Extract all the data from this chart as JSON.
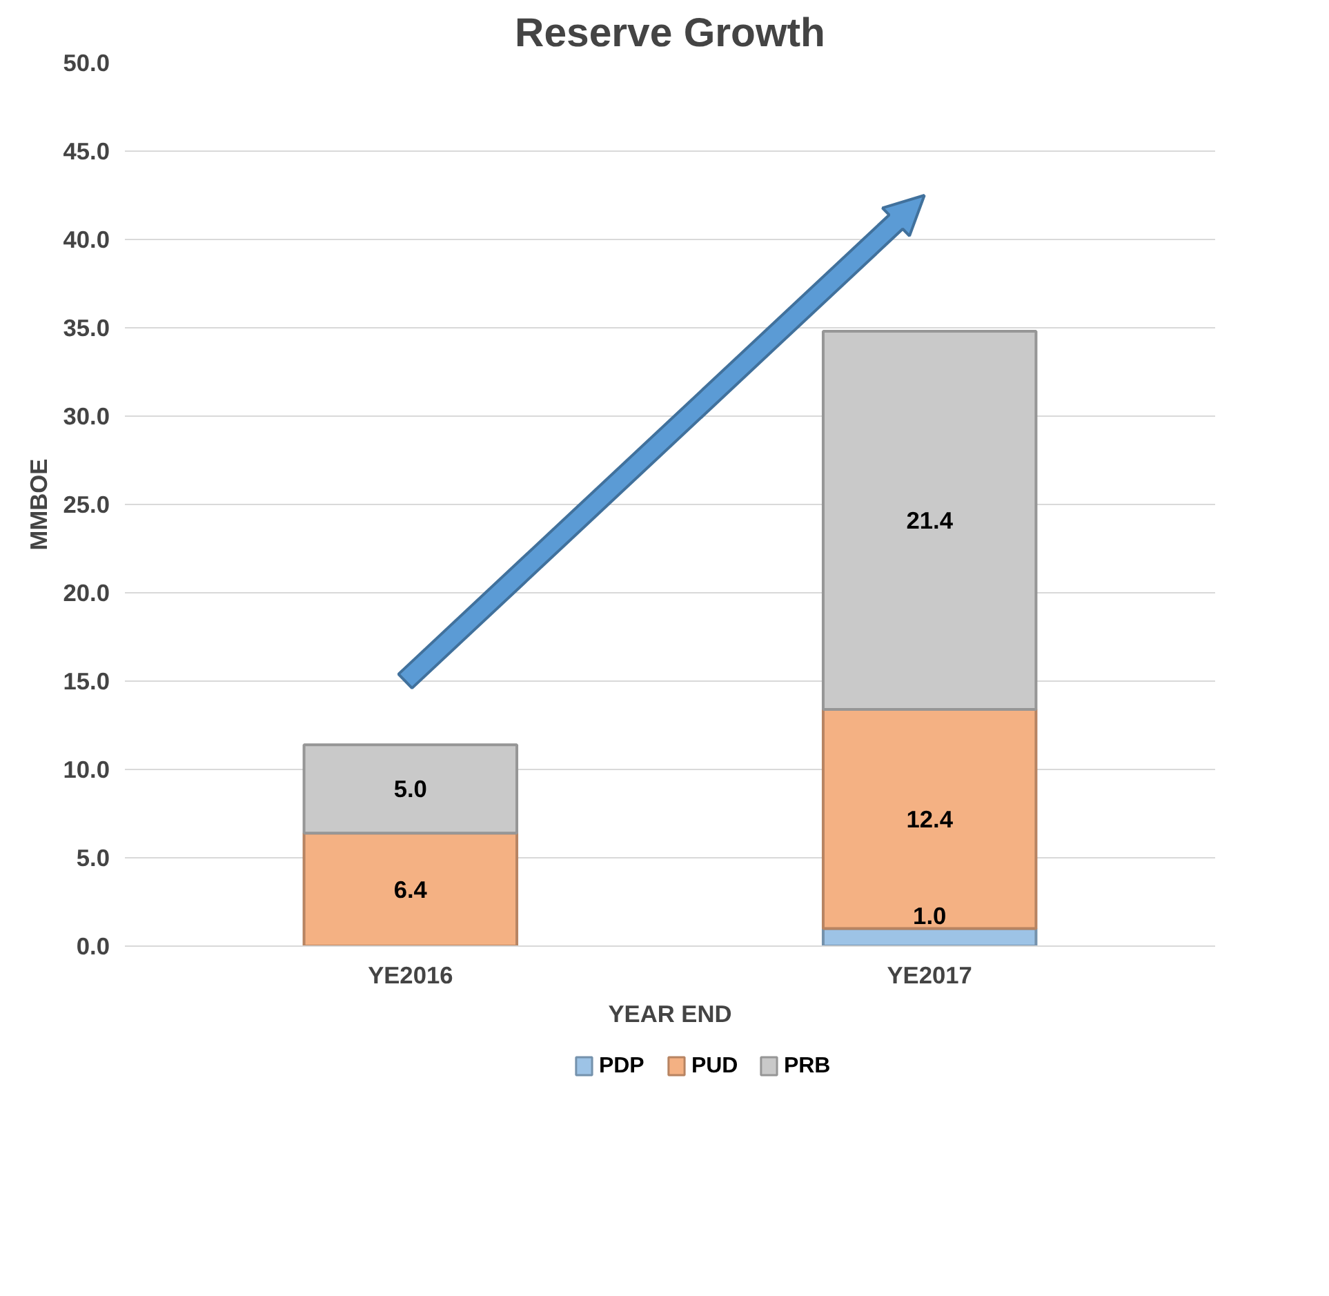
{
  "chart_data": {
    "type": "bar",
    "title": "Reserve Growth",
    "xlabel": "YEAR END",
    "ylabel": "MMBOE",
    "categories": [
      "YE2016",
      "YE2017"
    ],
    "stacked": true,
    "series": [
      {
        "name": "PDP",
        "color": "#9dc3e6",
        "values": [
          0,
          1.0
        ],
        "value_labels": [
          null,
          "1.0"
        ]
      },
      {
        "name": "PUD",
        "color": "#f4b183",
        "values": [
          6.4,
          12.4
        ],
        "value_labels": [
          "6.4",
          "12.4"
        ]
      },
      {
        "name": "PRB",
        "color": "#c9c9c9",
        "values": [
          5.0,
          21.4
        ],
        "value_labels": [
          "5.0",
          "21.4"
        ]
      }
    ],
    "ylim": [
      0,
      50
    ],
    "yticks": [
      {
        "value": 0,
        "label": "0.0"
      },
      {
        "value": 5,
        "label": "5.0"
      },
      {
        "value": 10,
        "label": "10.0"
      },
      {
        "value": 15,
        "label": "15.0"
      },
      {
        "value": 20,
        "label": "20.0"
      },
      {
        "value": 25,
        "label": "25.0"
      },
      {
        "value": 30,
        "label": "30.0"
      },
      {
        "value": 35,
        "label": "35.0"
      },
      {
        "value": 40,
        "label": "40.0"
      },
      {
        "value": 45,
        "label": "45.0"
      },
      {
        "value": 50,
        "label": "50.0"
      }
    ],
    "grid": "y",
    "legend": "bottom"
  }
}
